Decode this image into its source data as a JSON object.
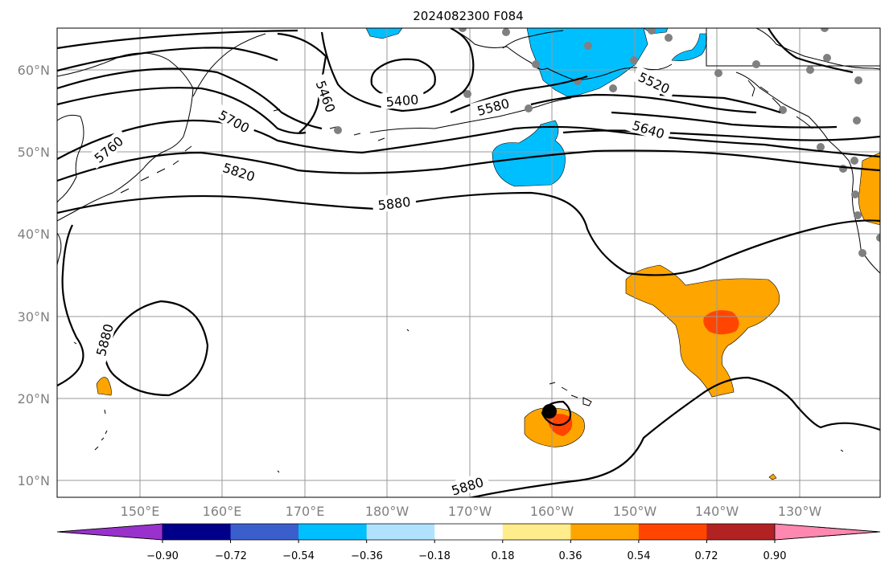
{
  "title": "2024082300 F084",
  "lat_labels": [
    "60°N",
    "50°N",
    "40°N",
    "30°N",
    "20°N",
    "10°N"
  ],
  "lon_labels": [
    "150°E",
    "160°E",
    "170°E",
    "180°W",
    "170°W",
    "160°W",
    "150°W",
    "140°W",
    "130°W"
  ],
  "contour_labels": [
    "5400",
    "5460",
    "5520",
    "5580",
    "5640",
    "5700",
    "5760",
    "5820",
    "5880",
    "5880",
    "5880"
  ],
  "colorbar": {
    "ticks": [
      "−0.90",
      "−0.72",
      "−0.54",
      "−0.36",
      "−0.18",
      "0.18",
      "0.36",
      "0.54",
      "0.72",
      "0.90"
    ],
    "colors": [
      "#9932cc",
      "#00008b",
      "#3a5fcd",
      "#00bfff",
      "#b0e2ff",
      "#ffffff",
      "#ffec8b",
      "#ffa500",
      "#ff4500",
      "#b22222",
      "#ff88b0"
    ]
  },
  "colors": {
    "negative_fill": "#00bfff",
    "positive_fill": "#ffa500",
    "strong_positive_fill": "#ff4500",
    "station_marker": "#808080"
  }
}
